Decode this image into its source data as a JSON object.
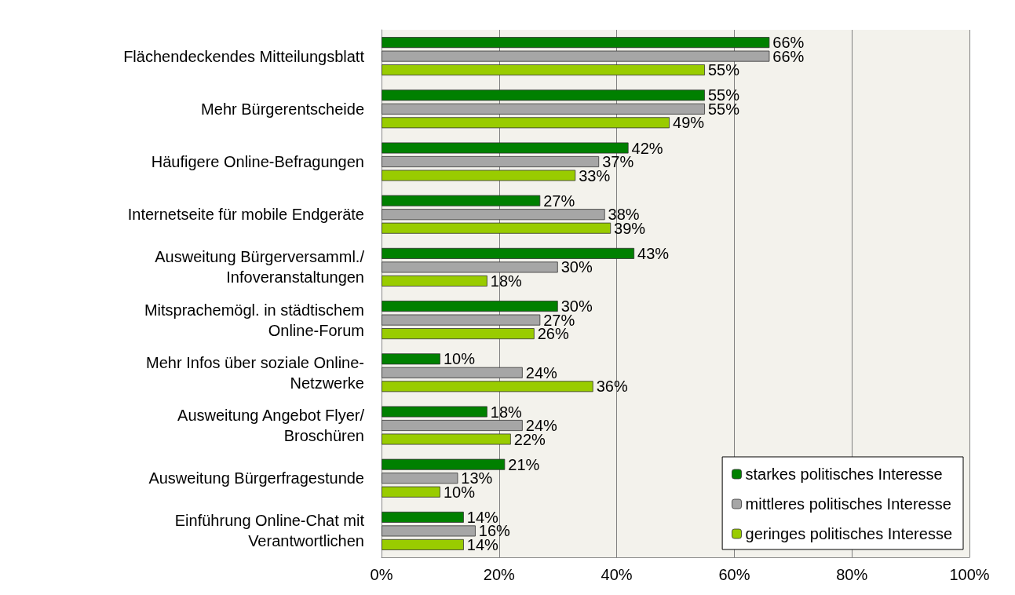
{
  "chart_data": {
    "type": "bar",
    "orientation": "horizontal",
    "categories": [
      "Flächendeckendes Mitteilungsblatt",
      "Mehr Bürgerentscheide",
      "Häufigere Online-Befragungen",
      "Internetseite für mobile Endgeräte",
      "Ausweitung Bürgerversamml./\nInfoveranstaltungen",
      "Mitsprachemögl. in städtischem\nOnline-Forum",
      "Mehr Infos über soziale Online-\nNetzwerke",
      "Ausweitung Angebot Flyer/\nBroschüren",
      "Ausweitung Bürgerfragestunde",
      "Einführung Online-Chat mit\nVerantwortlichen"
    ],
    "series": [
      {
        "name": "starkes politisches Interesse",
        "color": "#008000",
        "values": [
          66,
          55,
          42,
          27,
          43,
          30,
          10,
          18,
          21,
          14
        ],
        "value_labels": [
          "66%",
          "55%",
          "42%",
          "27%",
          "43%",
          "30%",
          "10%",
          "18%",
          "21%",
          "14%"
        ]
      },
      {
        "name": "mittleres politisches Interesse",
        "color": "#a6a6a6",
        "values": [
          66,
          55,
          37,
          38,
          30,
          27,
          24,
          24,
          13,
          16
        ],
        "value_labels": [
          "66%",
          "55%",
          "37%",
          "38%",
          "30%",
          "27%",
          "24%",
          "24%",
          "13%",
          "16%"
        ]
      },
      {
        "name": "geringes politisches Interesse",
        "color": "#99cc00",
        "values": [
          55,
          49,
          33,
          39,
          18,
          26,
          36,
          22,
          10,
          14
        ],
        "value_labels": [
          "55%",
          "49%",
          "33%",
          "39%",
          "18%",
          "26%",
          "36%",
          "22%",
          "10%",
          "14%"
        ]
      }
    ],
    "xlim": [
      0,
      100
    ],
    "xticks": [
      {
        "value": 0,
        "label": "0%"
      },
      {
        "value": 20,
        "label": "20%"
      },
      {
        "value": 40,
        "label": "40%"
      },
      {
        "value": 60,
        "label": "60%"
      },
      {
        "value": 80,
        "label": "80%"
      },
      {
        "value": 100,
        "label": "100%"
      }
    ],
    "grid": "x",
    "legend": "bottom right"
  }
}
